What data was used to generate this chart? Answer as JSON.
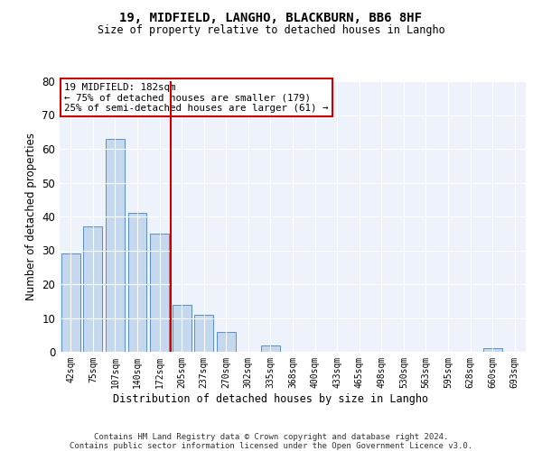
{
  "title1": "19, MIDFIELD, LANGHO, BLACKBURN, BB6 8HF",
  "title2": "Size of property relative to detached houses in Langho",
  "xlabel": "Distribution of detached houses by size in Langho",
  "ylabel": "Number of detached properties",
  "categories": [
    "42sqm",
    "75sqm",
    "107sqm",
    "140sqm",
    "172sqm",
    "205sqm",
    "237sqm",
    "270sqm",
    "302sqm",
    "335sqm",
    "368sqm",
    "400sqm",
    "433sqm",
    "465sqm",
    "498sqm",
    "530sqm",
    "563sqm",
    "595sqm",
    "628sqm",
    "660sqm",
    "693sqm"
  ],
  "values": [
    29,
    37,
    63,
    41,
    35,
    14,
    11,
    6,
    0,
    2,
    0,
    0,
    0,
    0,
    0,
    0,
    0,
    0,
    0,
    1,
    0
  ],
  "bar_color": "#c5d8ee",
  "bar_edge_color": "#5b8ec4",
  "ylim": [
    0,
    80
  ],
  "yticks": [
    0,
    10,
    20,
    30,
    40,
    50,
    60,
    70,
    80
  ],
  "vline_x": 4.5,
  "vline_color": "#cc0000",
  "annotation_text": "19 MIDFIELD: 182sqm\n← 75% of detached houses are smaller (179)\n25% of semi-detached houses are larger (61) →",
  "annotation_box_color": "#cc0000",
  "footer": "Contains HM Land Registry data © Crown copyright and database right 2024.\nContains public sector information licensed under the Open Government Licence v3.0.",
  "background_color": "#eef2fa"
}
